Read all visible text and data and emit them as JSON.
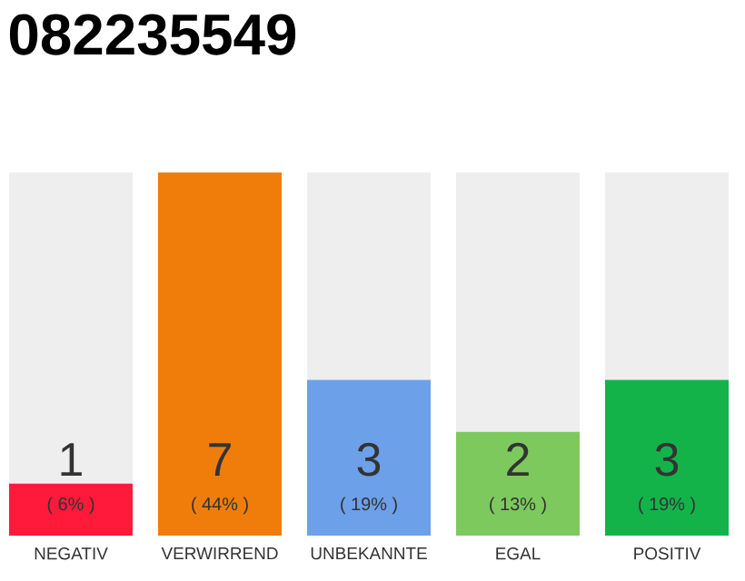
{
  "chart_data": {
    "type": "bar",
    "title": "082235549",
    "categories": [
      "NEGATIV",
      "VERWIRREND",
      "UNBEKANNTE",
      "EGAL",
      "POSITIV"
    ],
    "values": [
      1,
      7,
      3,
      2,
      3
    ],
    "colors": [
      "#ff1a3c",
      "#f07d0a",
      "#6ca0e8",
      "#7dc95e",
      "#13b34a"
    ],
    "ylim": [
      0,
      7
    ],
    "tick_labels": "x",
    "data_labels": true,
    "annotations": [
      "( 6% )",
      "( 44% )",
      "( 19% )",
      "( 13% )",
      "( 19% )"
    ]
  }
}
